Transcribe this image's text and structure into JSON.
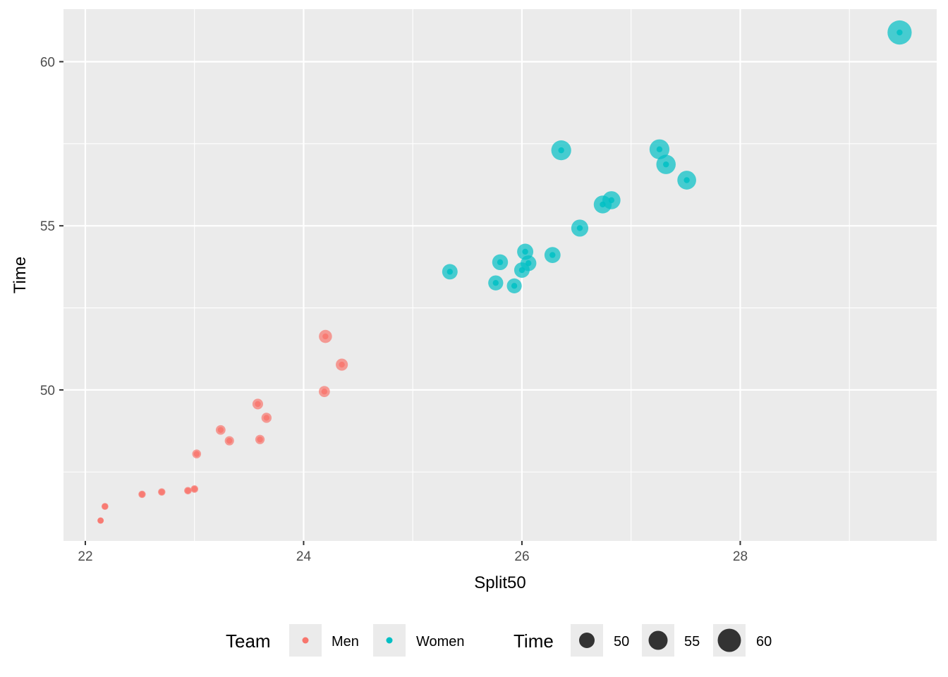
{
  "chart_data": {
    "type": "scatter",
    "title": "",
    "xlabel": "Split50",
    "ylabel": "Time",
    "xlim": [
      21.8,
      29.8
    ],
    "ylim": [
      45.4,
      61.6
    ],
    "x_ticks": [
      22,
      24,
      26,
      28
    ],
    "y_ticks": [
      50,
      55,
      60
    ],
    "x_tick_labels": [
      "22",
      "24",
      "26",
      "28"
    ],
    "y_tick_labels": [
      "50",
      "55",
      "60"
    ],
    "grid": true,
    "legend_position": "bottom",
    "colors": {
      "panel": "#EBEBEB",
      "grid": "#FFFFFF",
      "men": "#F8766D",
      "women": "#00BFC4",
      "size_key": "#333333"
    },
    "series": [
      {
        "name": "Men",
        "color": "#F8766D",
        "points": [
          [
            22.14,
            46.02
          ],
          [
            22.18,
            46.45
          ],
          [
            22.52,
            46.82
          ],
          [
            22.7,
            46.89
          ],
          [
            22.94,
            46.93
          ],
          [
            23.0,
            46.98
          ],
          [
            23.02,
            48.05
          ],
          [
            23.24,
            48.78
          ],
          [
            23.32,
            48.45
          ],
          [
            23.58,
            49.57
          ],
          [
            23.6,
            48.49
          ],
          [
            23.66,
            49.15
          ],
          [
            24.19,
            49.95
          ],
          [
            24.2,
            51.63
          ],
          [
            24.35,
            50.77
          ]
        ]
      },
      {
        "name": "Women",
        "color": "#00BFC4",
        "points": [
          [
            25.34,
            53.6
          ],
          [
            25.76,
            53.26
          ],
          [
            25.8,
            53.89
          ],
          [
            25.93,
            53.17
          ],
          [
            26.0,
            53.65
          ],
          [
            26.03,
            54.21
          ],
          [
            26.06,
            53.86
          ],
          [
            26.28,
            54.11
          ],
          [
            26.36,
            57.3
          ],
          [
            26.53,
            54.93
          ],
          [
            26.74,
            55.65
          ],
          [
            26.82,
            55.78
          ],
          [
            27.26,
            57.33
          ],
          [
            27.32,
            56.87
          ],
          [
            27.51,
            56.39
          ],
          [
            29.46,
            60.89
          ]
        ]
      }
    ],
    "legend": {
      "color_title": "Team",
      "color_items": [
        "Men",
        "Women"
      ],
      "size_title": "Time",
      "size_items": [
        50,
        55,
        60
      ],
      "size_labels": [
        "50",
        "55",
        "60"
      ]
    }
  }
}
